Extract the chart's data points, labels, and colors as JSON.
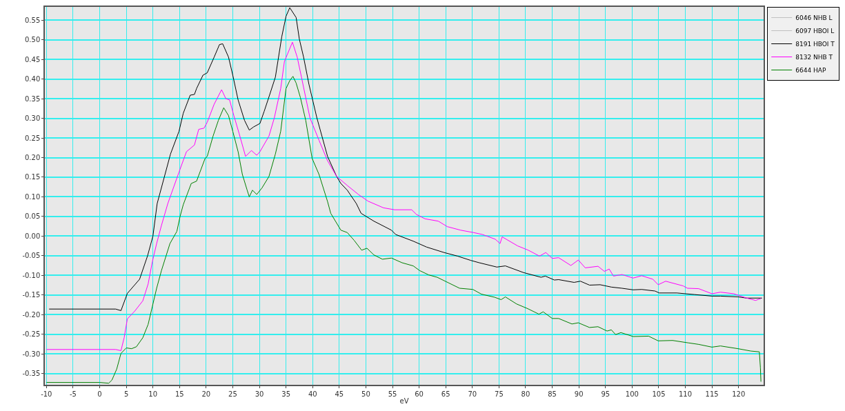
{
  "chart_data": {
    "type": "line",
    "xlabel": "eV",
    "xlim": [
      -10.3,
      124.7
    ],
    "ylim": [
      -0.379,
      0.584
    ],
    "xticks": [
      -10,
      -5,
      0,
      5,
      10,
      15,
      20,
      25,
      30,
      35,
      40,
      45,
      50,
      55,
      60,
      65,
      70,
      75,
      80,
      85,
      90,
      95,
      100,
      105,
      110,
      115,
      120
    ],
    "yticks": [
      {
        "value": -0.35,
        "label": "-0.35"
      },
      {
        "value": -0.3,
        "label": "-0.30"
      },
      {
        "value": -0.25,
        "label": "-0.25"
      },
      {
        "value": -0.2,
        "label": "-0.20"
      },
      {
        "value": -0.15,
        "label": "-0.15"
      },
      {
        "value": -0.1,
        "label": "-0.10"
      },
      {
        "value": -0.05,
        "label": "-0.05"
      },
      {
        "value": 0,
        "label": "0.00"
      },
      {
        "value": 0.05,
        "label": "0.05"
      },
      {
        "value": 0.1,
        "label": "0.10"
      },
      {
        "value": 0.15,
        "label": "0.15"
      },
      {
        "value": 0.2,
        "label": "0.20"
      },
      {
        "value": 0.25,
        "label": "0.25"
      },
      {
        "value": 0.3,
        "label": "0.30"
      },
      {
        "value": 0.35,
        "label": "0.35"
      },
      {
        "value": 0.4,
        "label": "0.40"
      },
      {
        "value": 0.45,
        "label": "0.45"
      },
      {
        "value": 0.5,
        "label": "0.50"
      },
      {
        "value": 0.55,
        "label": "0.55"
      }
    ],
    "grid": true,
    "legend": "top right",
    "marker": "none",
    "line_style": "solid",
    "series": [
      {
        "name": "6046 NHB L",
        "color": "#c0c0c0"
      },
      {
        "name": "6097 HBOI L",
        "color": "#c0c0c0"
      },
      {
        "name": "8191 HBOI T",
        "color": "#000000",
        "x": [
          -9.5,
          0,
          3,
          4,
          5.2,
          7.5,
          9,
          10,
          10.8,
          13.3,
          14.9,
          15.7,
          17,
          17.8,
          18.2,
          19.4,
          20.2,
          21.5,
          22.5,
          23.1,
          24.2,
          25,
          26,
          27.2,
          28.1,
          28.9,
          30.1,
          30.9,
          31.9,
          33,
          34.2,
          35,
          35.7,
          36.9,
          37.5,
          38.3,
          39.3,
          40.8,
          42.8,
          44.5,
          45.3,
          46.5,
          48.2,
          49.1,
          51.5,
          54.8,
          55.6,
          58.9,
          61.4,
          64.7,
          67.2,
          69.7,
          71.3,
          74.6,
          76.2,
          79.6,
          82.9,
          83.7,
          85.4,
          86.2,
          89.1,
          90.3,
          92,
          94,
          96.1,
          98.1,
          100.2,
          101.8,
          104.3,
          105.1,
          108.4,
          111.7,
          115,
          116.6,
          119.9,
          121.5,
          124.4
        ],
        "values": [
          -0.186,
          -0.186,
          -0.186,
          -0.19,
          -0.146,
          -0.11,
          -0.05,
          0.0,
          0.083,
          0.209,
          0.267,
          0.313,
          0.359,
          0.361,
          0.376,
          0.41,
          0.416,
          0.456,
          0.488,
          0.49,
          0.456,
          0.41,
          0.347,
          0.295,
          0.27,
          0.278,
          0.287,
          0.318,
          0.359,
          0.405,
          0.508,
          0.56,
          0.582,
          0.557,
          0.502,
          0.456,
          0.387,
          0.301,
          0.203,
          0.152,
          0.134,
          0.117,
          0.083,
          0.058,
          0.038,
          0.015,
          0.004,
          -0.013,
          -0.028,
          -0.042,
          -0.051,
          -0.062,
          -0.068,
          -0.079,
          -0.076,
          -0.093,
          -0.105,
          -0.102,
          -0.112,
          -0.111,
          -0.118,
          -0.115,
          -0.125,
          -0.124,
          -0.13,
          -0.133,
          -0.137,
          -0.136,
          -0.14,
          -0.145,
          -0.145,
          -0.149,
          -0.153,
          -0.153,
          -0.155,
          -0.158,
          -0.158
        ]
      },
      {
        "name": "8132 NHB T",
        "color": "#ff00ff",
        "x": [
          -10,
          3,
          4,
          4.6,
          5.2,
          6.6,
          8.1,
          9.1,
          9.9,
          10.7,
          11.6,
          12.8,
          14.9,
          16.3,
          17.8,
          18.6,
          19.6,
          20.2,
          21.5,
          22.9,
          23.7,
          24.4,
          25.2,
          26.2,
          27.4,
          28.5,
          29.5,
          30.1,
          31.8,
          32.8,
          34,
          34.7,
          36.2,
          37.1,
          37.9,
          39.5,
          41.2,
          42.8,
          44.5,
          46.5,
          48.6,
          50.4,
          53.3,
          55.4,
          58.6,
          59.5,
          61.1,
          63.6,
          65.3,
          67.8,
          70.2,
          71.9,
          74.3,
          75.2,
          75.6,
          78.5,
          80.5,
          82.6,
          83.8,
          85,
          86.2,
          88.5,
          89.9,
          91.2,
          93.6,
          94.8,
          95.7,
          96.5,
          98.1,
          100.2,
          101.8,
          103.9,
          104.9,
          106.3,
          109.6,
          110.4,
          112.5,
          115,
          116.6,
          119.1,
          121.5,
          123.2,
          124.2
        ],
        "values": [
          -0.289,
          -0.289,
          -0.292,
          -0.259,
          -0.211,
          -0.191,
          -0.165,
          -0.122,
          -0.065,
          -0.019,
          0.027,
          0.083,
          0.163,
          0.215,
          0.232,
          0.272,
          0.275,
          0.29,
          0.336,
          0.373,
          0.35,
          0.347,
          0.307,
          0.261,
          0.203,
          0.218,
          0.206,
          0.215,
          0.255,
          0.301,
          0.376,
          0.445,
          0.494,
          0.456,
          0.405,
          0.301,
          0.244,
          0.192,
          0.152,
          0.129,
          0.106,
          0.089,
          0.072,
          0.067,
          0.067,
          0.055,
          0.044,
          0.038,
          0.024,
          0.015,
          0.009,
          0.004,
          -0.008,
          -0.019,
          -0.002,
          -0.025,
          -0.036,
          -0.051,
          -0.042,
          -0.057,
          -0.055,
          -0.075,
          -0.061,
          -0.081,
          -0.077,
          -0.09,
          -0.084,
          -0.102,
          -0.098,
          -0.107,
          -0.101,
          -0.11,
          -0.124,
          -0.115,
          -0.127,
          -0.133,
          -0.134,
          -0.147,
          -0.143,
          -0.147,
          -0.158,
          -0.164,
          -0.159
        ]
      },
      {
        "name": "6644 HAP",
        "color": "#008000",
        "x": [
          -10,
          0,
          1.7,
          2.3,
          3.2,
          4,
          5,
          6,
          6.9,
          8.1,
          9.1,
          9.9,
          10.7,
          11.6,
          13.2,
          14.5,
          15.1,
          15.7,
          17.2,
          18.2,
          19.8,
          20.2,
          21.3,
          22.3,
          23.3,
          24.2,
          25,
          26,
          26.8,
          27.7,
          28.1,
          28.7,
          29.5,
          30.5,
          31.8,
          33,
          34,
          35,
          35.7,
          36.3,
          36.9,
          37.7,
          38.7,
          39.9,
          41.2,
          42.8,
          43.4,
          45.3,
          46.5,
          47.8,
          49.2,
          50.2,
          51.5,
          53.1,
          54.8,
          56.8,
          58.9,
          60.1,
          61.8,
          63.4,
          65.5,
          67.6,
          70.1,
          71.7,
          74.2,
          75.4,
          76.2,
          78.3,
          80.4,
          82.5,
          83.3,
          85,
          86.2,
          88.7,
          89.9,
          92,
          93.6,
          95.3,
          96.1,
          96.9,
          97.9,
          100.2,
          103.1,
          104.9,
          107.6,
          110.5,
          112.5,
          115,
          116.6,
          119.9,
          122.3,
          123.9,
          124.1,
          124.2
        ],
        "values": [
          -0.373,
          -0.373,
          -0.375,
          -0.367,
          -0.339,
          -0.299,
          -0.285,
          -0.287,
          -0.282,
          -0.259,
          -0.225,
          -0.179,
          -0.133,
          -0.088,
          -0.019,
          0.012,
          0.05,
          0.08,
          0.134,
          0.14,
          0.198,
          0.203,
          0.255,
          0.295,
          0.327,
          0.307,
          0.267,
          0.215,
          0.157,
          0.117,
          0.1,
          0.117,
          0.106,
          0.123,
          0.152,
          0.209,
          0.267,
          0.376,
          0.396,
          0.407,
          0.39,
          0.353,
          0.295,
          0.198,
          0.157,
          0.088,
          0.058,
          0.015,
          0.009,
          -0.011,
          -0.036,
          -0.031,
          -0.048,
          -0.059,
          -0.056,
          -0.068,
          -0.076,
          -0.088,
          -0.099,
          -0.105,
          -0.119,
          -0.133,
          -0.136,
          -0.148,
          -0.156,
          -0.162,
          -0.155,
          -0.173,
          -0.185,
          -0.199,
          -0.193,
          -0.21,
          -0.21,
          -0.224,
          -0.221,
          -0.233,
          -0.231,
          -0.242,
          -0.239,
          -0.251,
          -0.246,
          -0.256,
          -0.255,
          -0.267,
          -0.266,
          -0.272,
          -0.276,
          -0.283,
          -0.28,
          -0.287,
          -0.293,
          -0.295,
          -0.336,
          -0.371
        ]
      }
    ]
  }
}
